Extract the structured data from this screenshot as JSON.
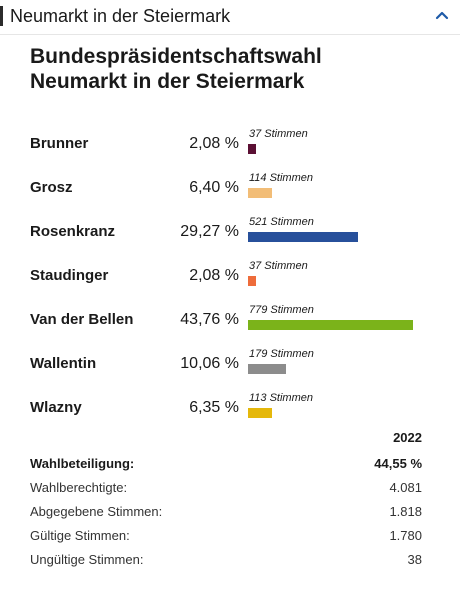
{
  "header": {
    "title": "Neumarkt in der Steiermark"
  },
  "title_line1": "Bundespräsidentschaftswahl",
  "title_line2": "Neumarkt in der Steiermark",
  "chart_data": {
    "type": "bar",
    "categories": [
      "Brunner",
      "Grosz",
      "Rosenkranz",
      "Staudinger",
      "Van der Bellen",
      "Wallentin",
      "Wlazny"
    ],
    "percent_labels": [
      "2,08 %",
      "6,40 %",
      "29,27 %",
      "2,08 %",
      "43,76 %",
      "10,06 %",
      "6,35 %"
    ],
    "values": [
      37,
      114,
      521,
      37,
      779,
      179,
      113
    ],
    "vote_labels": [
      "37 Stimmen",
      "114 Stimmen",
      "521 Stimmen",
      "37 Stimmen",
      "779 Stimmen",
      "179 Stimmen",
      "113 Stimmen"
    ],
    "colors": [
      "#5b1034",
      "#f2bd77",
      "#27509b",
      "#ee6c3b",
      "#7bb31a",
      "#8c8c8c",
      "#e5b80b"
    ],
    "title": "",
    "xlabel": "",
    "ylabel": ""
  },
  "stats": {
    "year": "2022",
    "rows": [
      {
        "label": "Wahlbeteiligung:",
        "value": "44,55 %"
      },
      {
        "label": "Wahlberechtigte:",
        "value": "4.081"
      },
      {
        "label": "Abgegebene Stimmen:",
        "value": "1.818"
      },
      {
        "label": "Gültige Stimmen:",
        "value": "1.780"
      },
      {
        "label": "Ungültige Stimmen:",
        "value": "38"
      }
    ]
  }
}
